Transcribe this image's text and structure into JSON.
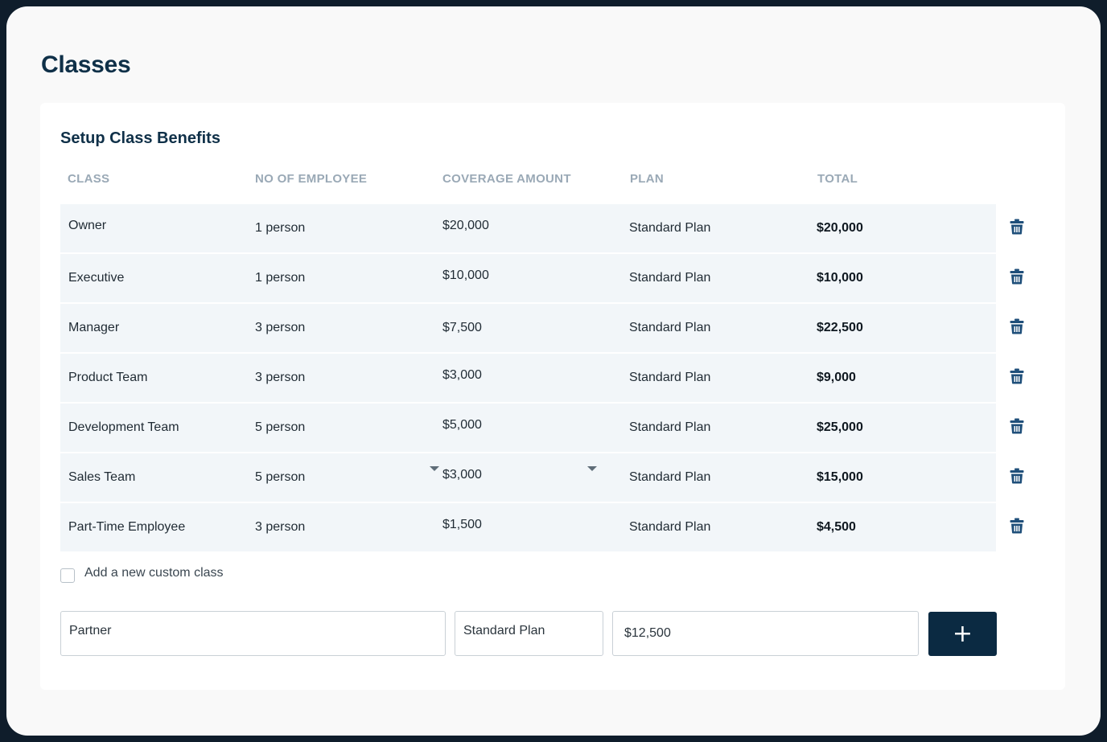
{
  "page": {
    "title": "Classes"
  },
  "card": {
    "title": "Setup Class Benefits"
  },
  "columns": {
    "class": "CLASS",
    "employees": "NO OF EMPLOYEE",
    "coverage": "COVERAGE AMOUNT",
    "plan": "PLAN",
    "total": "TOTAL"
  },
  "rows": [
    {
      "class": "Owner",
      "employees": "1 person",
      "coverage": "$20,000",
      "plan": "Standard Plan",
      "total": "$20,000"
    },
    {
      "class": "Executive",
      "employees": "1 person",
      "coverage": "$10,000",
      "plan": "Standard Plan",
      "total": "$10,000"
    },
    {
      "class": "Manager",
      "employees": "3 person",
      "coverage": "$7,500",
      "plan": "Standard Plan",
      "total": "$22,500"
    },
    {
      "class": "Product Team",
      "employees": "3 person",
      "coverage": "$3,000",
      "plan": "Standard Plan",
      "total": "$9,000"
    },
    {
      "class": "Development Team",
      "employees": "5 person",
      "coverage": "$5,000",
      "plan": "Standard Plan",
      "total": "$25,000"
    },
    {
      "class": "Sales Team",
      "employees": "5 person",
      "coverage": "$3,000",
      "plan": "Standard Plan",
      "total": "$15,000"
    },
    {
      "class": "Part-Time Employee",
      "employees": "3 person",
      "coverage": "$1,500",
      "plan": "Standard Plan",
      "total": "$4,500"
    }
  ],
  "row_icon": "trash-icon",
  "custom_class": {
    "checkbox_label": "Add a new custom class",
    "checked": false,
    "name_value": "Partner",
    "plan_value": "Standard Plan",
    "amount_value": "$12,500",
    "add_button_label": "+"
  },
  "colors": {
    "title": "#0f3048",
    "header_text": "#9aa9b6",
    "row_background": "#f2f6f9",
    "trash_icon": "#1f4f7a",
    "add_button": "#0b2a42"
  }
}
